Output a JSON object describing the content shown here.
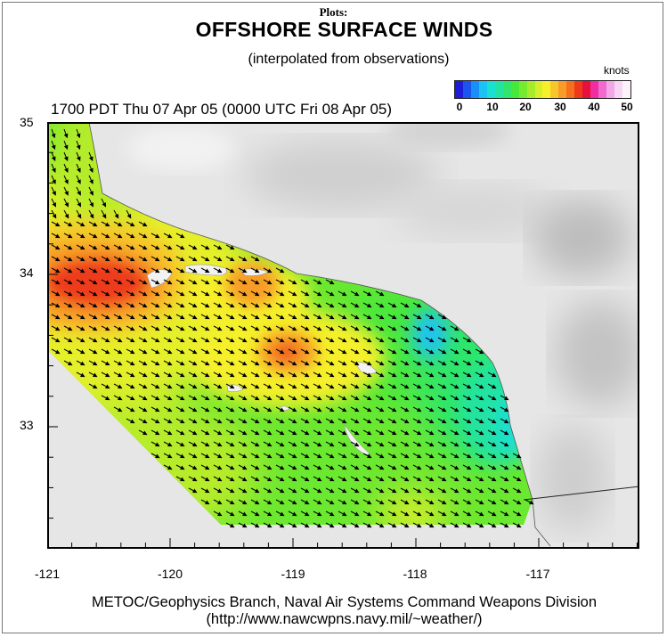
{
  "header": {
    "plots_label": "Plots:",
    "title": "OFFSHORE SURFACE WINDS",
    "subtitle": "(interpolated from observations)",
    "timestamp": "1700 PDT Thu 07 Apr 05 (0000 UTC Fri 08 Apr 05)"
  },
  "legend": {
    "units": "knots",
    "ticks": [
      "0",
      "10",
      "20",
      "30",
      "40",
      "50"
    ],
    "colors": [
      "#1d1dd6",
      "#1c55ee",
      "#1a8ff5",
      "#1bc3f5",
      "#1ae0d0",
      "#22e3a0",
      "#2fe66a",
      "#47e83c",
      "#78ea2e",
      "#a6ec2a",
      "#d3f02a",
      "#f5f02a",
      "#f7c62a",
      "#f79c28",
      "#f56f1f",
      "#ee3a1a",
      "#e8103c",
      "#ef2f9e",
      "#f16ad0",
      "#f4a6e9",
      "#f8d6f3",
      "#fdf2fb"
    ]
  },
  "axes": {
    "latitudes": [
      "35",
      "34",
      "33"
    ],
    "longitudes": [
      "-121",
      "-120",
      "-119",
      "-118",
      "-117"
    ]
  },
  "map": {
    "land_color": "#e5e5e5",
    "wind_colors": {
      "low": "#1bc3f5",
      "green": "#47e83c",
      "yellow": "#f5f02a",
      "orange": "#f79c28",
      "red": "#ee3a1a"
    }
  },
  "footer": {
    "line1": "METOC/Geophysics Branch, Naval Air Systems Command Weapons Division",
    "line2": "(http://www.nawcwpns.navy.mil/~weather/)"
  }
}
